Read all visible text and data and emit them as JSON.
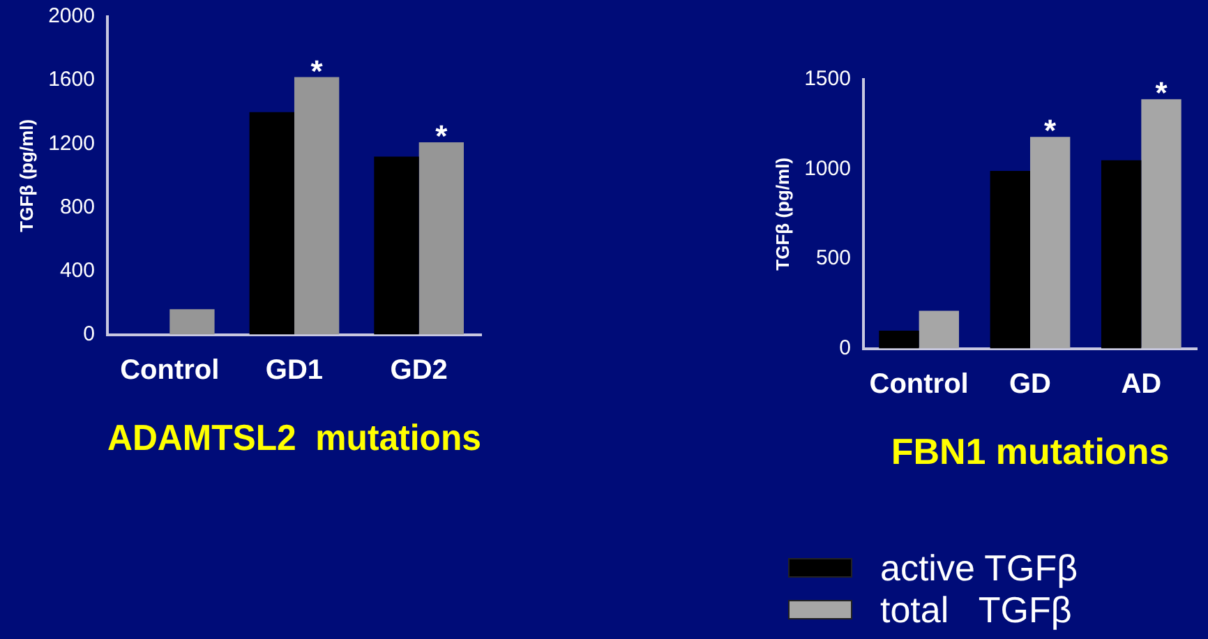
{
  "chart_data": [
    {
      "type": "bar",
      "xlabel": "ADAMTSL2  mutations",
      "ylabel": "TGFβ (pg/ml)",
      "categories": [
        "Control",
        "GD1",
        "GD2"
      ],
      "series": [
        {
          "color": "#000000",
          "values": [
            0,
            1400,
            1120
          ]
        },
        {
          "color": "#969696",
          "values": [
            160,
            1620,
            1210
          ]
        }
      ],
      "ylim": [
        0,
        2000
      ],
      "yticks": [
        0,
        400,
        800,
        1200,
        1600,
        2000
      ],
      "grid": false,
      "legend": false,
      "annotations": [
        {
          "text": "*",
          "x": "GD1",
          "y": 1620
        },
        {
          "text": "*",
          "x": "GD2",
          "y": 1210
        }
      ]
    },
    {
      "type": "bar",
      "xlabel": "FBN1 mutations",
      "ylabel": "TGFβ (pg/ml)",
      "categories": [
        "Control",
        "GD",
        "AD"
      ],
      "series": [
        {
          "name": "active TGFβ",
          "color": "#000000",
          "values": [
            100,
            990,
            1050
          ]
        },
        {
          "name": "total   TGFβ",
          "color": "#a6a6a6",
          "values": [
            210,
            1180,
            1390
          ]
        }
      ],
      "ylim": [
        0,
        1500
      ],
      "yticks": [
        0,
        500,
        1000,
        1500
      ],
      "grid": false,
      "legend": "bottom",
      "annotations": [
        {
          "text": "*",
          "x": "GD",
          "y": 1180
        },
        {
          "text": "*",
          "x": "AD",
          "y": 1390
        }
      ]
    }
  ]
}
